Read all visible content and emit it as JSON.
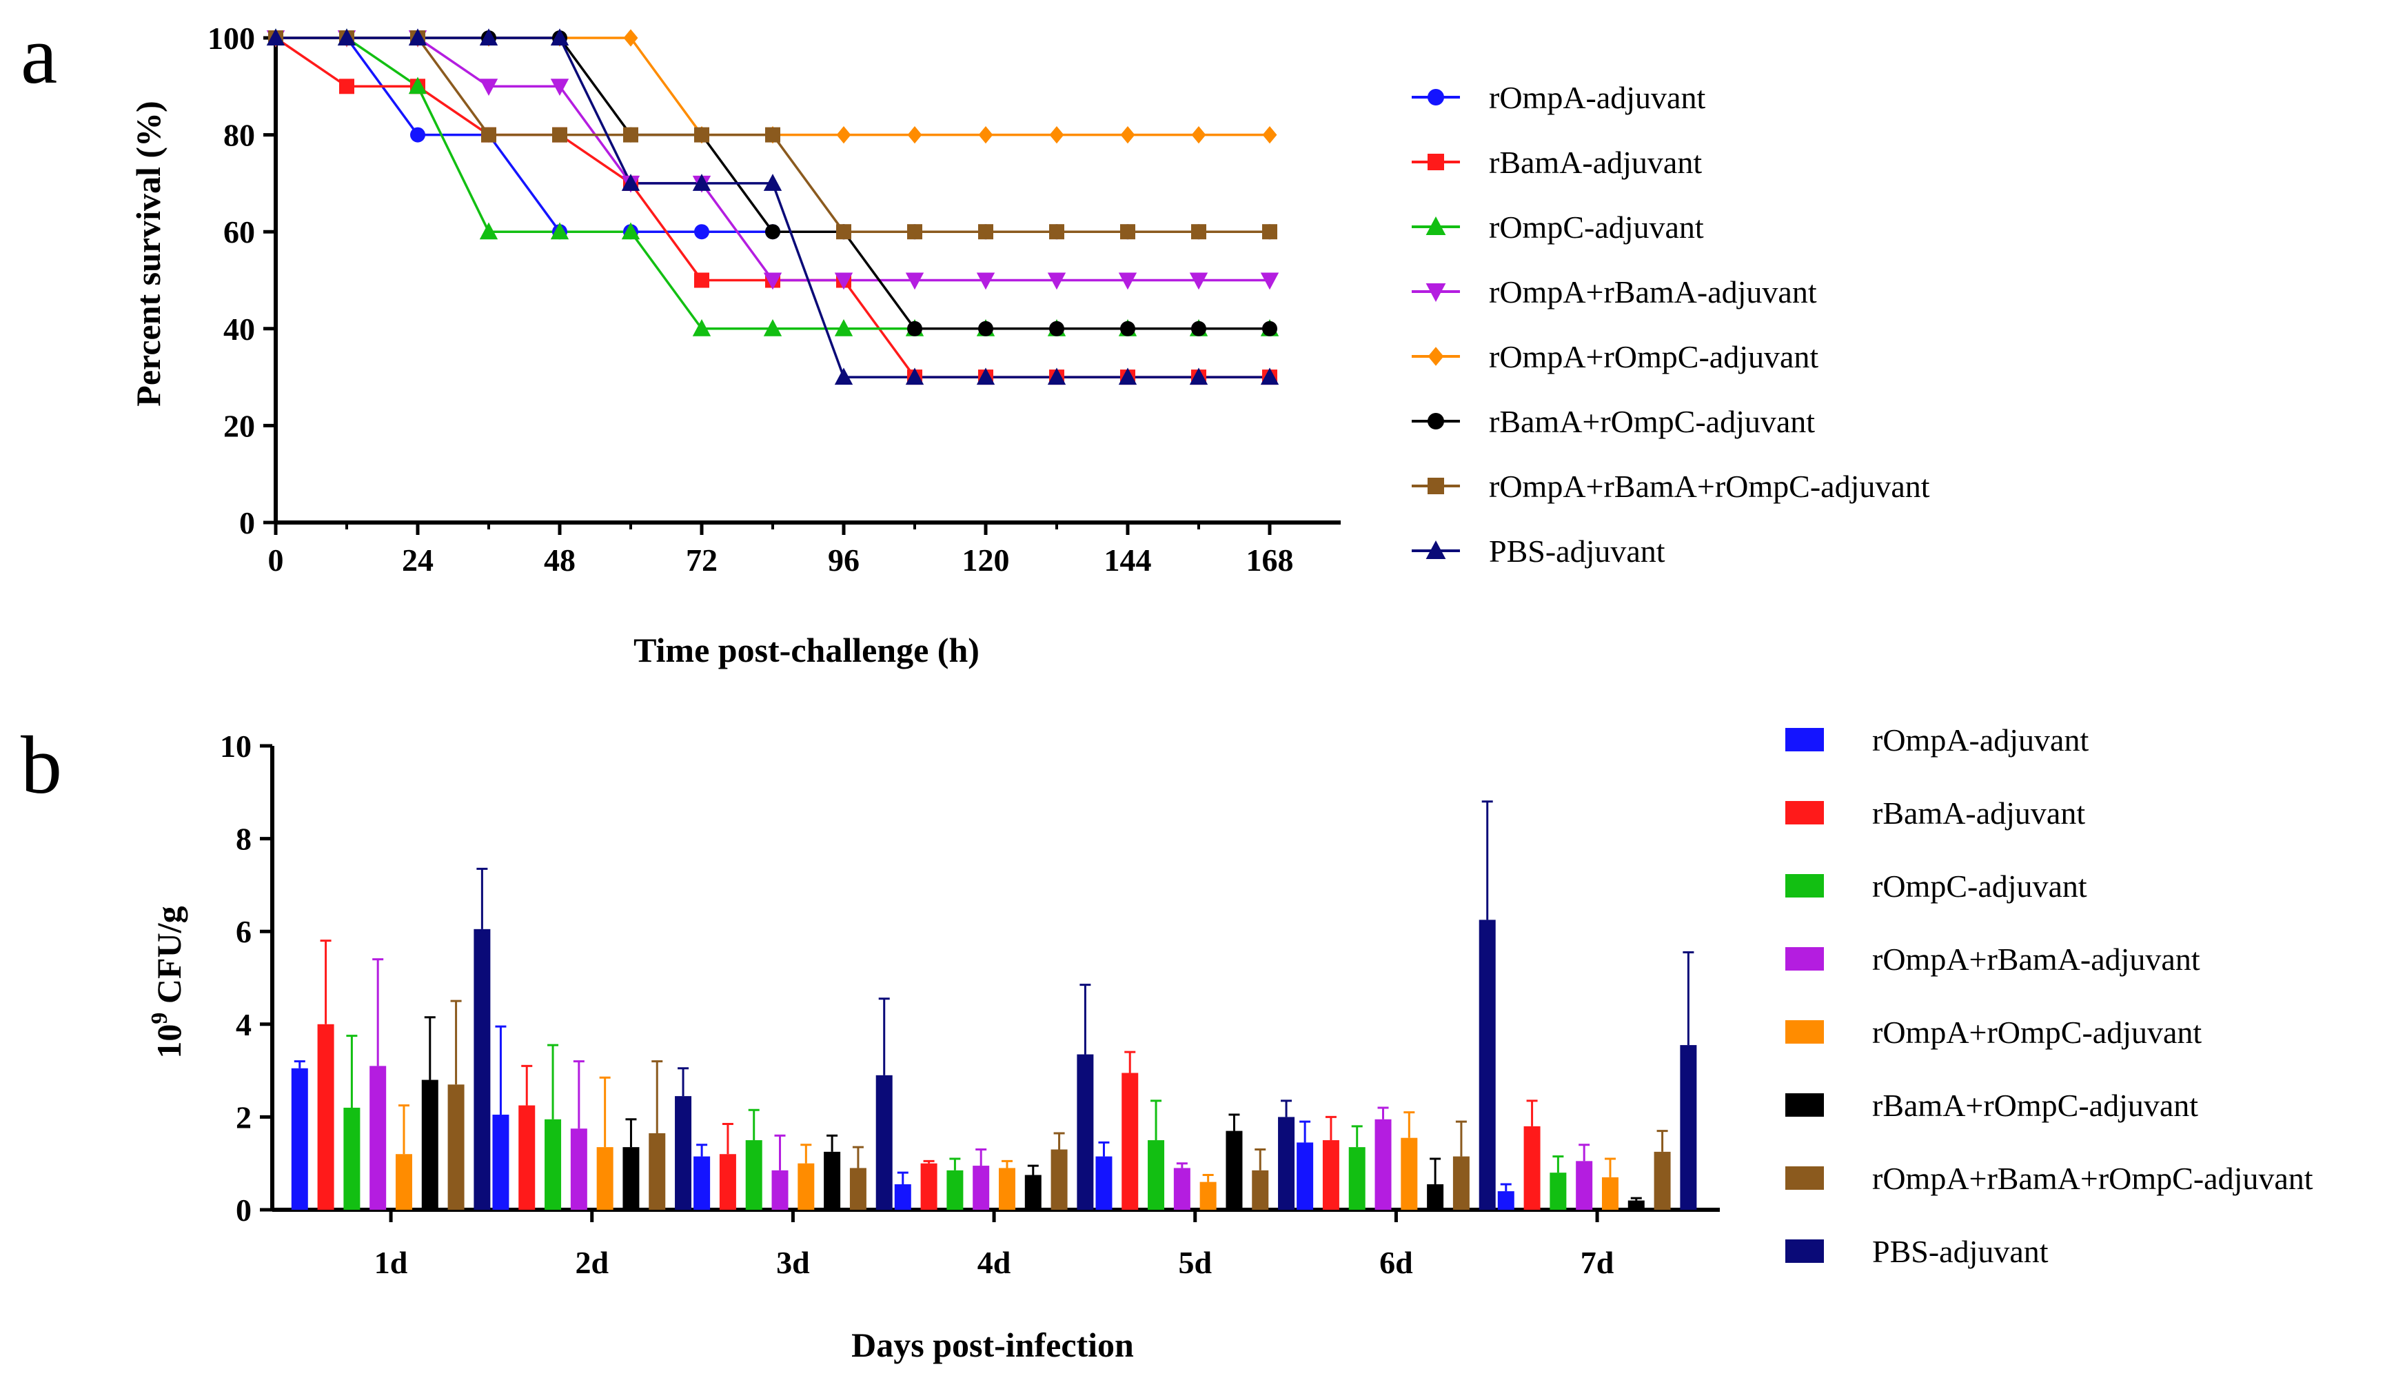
{
  "panels": [
    {
      "letter": "a",
      "chart_data": {
        "type": "line",
        "xlabel": "Time post-challenge (h)",
        "ylabel": "Percent survival (%)",
        "xlim": [
          0,
          168
        ],
        "ylim": [
          0,
          100
        ],
        "xticks": [
          0,
          24,
          48,
          72,
          96,
          120,
          144,
          168
        ],
        "yticks": [
          0,
          20,
          40,
          60,
          80,
          100
        ],
        "grid": false,
        "legend_position": "right",
        "x": [
          0,
          12,
          24,
          36,
          48,
          60,
          72,
          84,
          96,
          108,
          120,
          132,
          144,
          156,
          168
        ],
        "series": [
          {
            "name": "rOmpA-adjuvant",
            "color": "#1414ff",
            "marker": "circle",
            "values": [
              100,
              100,
              80,
              80,
              60,
              60,
              60,
              60,
              60,
              60,
              60,
              60,
              60,
              60,
              60
            ]
          },
          {
            "name": "rBamA-adjuvant",
            "color": "#ff1a1a",
            "marker": "square",
            "values": [
              100,
              90,
              90,
              80,
              80,
              70,
              50,
              50,
              50,
              30,
              30,
              30,
              30,
              30,
              30
            ]
          },
          {
            "name": "rOmpC-adjuvant",
            "color": "#12bf12",
            "marker": "triangle-up",
            "values": [
              100,
              100,
              90,
              60,
              60,
              60,
              40,
              40,
              40,
              40,
              40,
              40,
              40,
              40,
              40
            ]
          },
          {
            "name": "rOmpA+rBamA-adjuvant",
            "color": "#b41de0",
            "marker": "triangle-down",
            "values": [
              100,
              100,
              100,
              90,
              90,
              70,
              70,
              50,
              50,
              50,
              50,
              50,
              50,
              50,
              50
            ]
          },
          {
            "name": "rOmpA+rOmpC-adjuvant",
            "color": "#ff8c00",
            "marker": "diamond",
            "values": [
              100,
              100,
              100,
              100,
              100,
              100,
              80,
              80,
              80,
              80,
              80,
              80,
              80,
              80,
              80
            ]
          },
          {
            "name": "rBamA+rOmpC-adjuvant",
            "color": "#000000",
            "marker": "circle",
            "values": [
              100,
              100,
              100,
              100,
              100,
              80,
              80,
              60,
              60,
              40,
              40,
              40,
              40,
              40,
              40
            ]
          },
          {
            "name": "rOmpA+rBamA+rOmpC-adjuvant",
            "color": "#8b5a1e",
            "marker": "square",
            "values": [
              100,
              100,
              100,
              80,
              80,
              80,
              80,
              80,
              60,
              60,
              60,
              60,
              60,
              60,
              60
            ]
          },
          {
            "name": "PBS-adjuvant",
            "color": "#0a0a78",
            "marker": "triangle-up",
            "values": [
              100,
              100,
              100,
              100,
              100,
              70,
              70,
              70,
              30,
              30,
              30,
              30,
              30,
              30,
              30
            ]
          }
        ]
      }
    },
    {
      "letter": "b",
      "chart_data": {
        "type": "bar",
        "xlabel": "Days post-infection",
        "ylabel_base": "10",
        "ylabel_exp": "9",
        "ylabel_unit": " CFU/g",
        "ylim": [
          0,
          10
        ],
        "yticks": [
          0,
          2,
          4,
          6,
          8,
          10
        ],
        "grid": false,
        "legend_position": "right",
        "categories": [
          "1d",
          "2d",
          "3d",
          "4d",
          "5d",
          "6d",
          "7d"
        ],
        "error_bars": "upper standard deviation",
        "series": [
          {
            "name": "rOmpA-adjuvant",
            "color": "#1414ff",
            "values": [
              3.05,
              2.05,
              1.15,
              0.55,
              1.15,
              1.45,
              0.4
            ],
            "errors": [
              0.15,
              1.9,
              0.25,
              0.25,
              0.3,
              0.45,
              0.15
            ]
          },
          {
            "name": "rBamA-adjuvant",
            "color": "#ff1a1a",
            "values": [
              4.0,
              2.25,
              1.2,
              1.0,
              2.95,
              1.5,
              1.8
            ],
            "errors": [
              1.8,
              0.85,
              0.65,
              0.05,
              0.45,
              0.5,
              0.55
            ]
          },
          {
            "name": "rOmpC-adjuvant",
            "color": "#12bf12",
            "values": [
              2.2,
              1.95,
              1.5,
              0.85,
              1.5,
              1.35,
              0.8
            ],
            "errors": [
              1.55,
              1.6,
              0.65,
              0.25,
              0.85,
              0.45,
              0.35
            ]
          },
          {
            "name": "rOmpA+rBamA-adjuvant",
            "color": "#b41de0",
            "values": [
              3.1,
              1.75,
              0.85,
              0.95,
              0.9,
              1.95,
              1.05
            ],
            "errors": [
              2.3,
              1.45,
              0.75,
              0.35,
              0.1,
              0.25,
              0.35
            ]
          },
          {
            "name": "rOmpA+rOmpC-adjuvant",
            "color": "#ff8c00",
            "values": [
              1.2,
              1.35,
              1.0,
              0.9,
              0.6,
              1.55,
              0.7
            ],
            "errors": [
              1.05,
              1.5,
              0.4,
              0.15,
              0.15,
              0.55,
              0.4
            ]
          },
          {
            "name": "rBamA+rOmpC-adjuvant",
            "color": "#000000",
            "values": [
              2.8,
              1.35,
              1.25,
              0.75,
              1.7,
              0.55,
              0.2
            ],
            "errors": [
              1.35,
              0.6,
              0.35,
              0.2,
              0.35,
              0.55,
              0.05
            ]
          },
          {
            "name": "rOmpA+rBamA+rOmpC-adjuvant",
            "color": "#8b5a1e",
            "values": [
              2.7,
              1.65,
              0.9,
              1.3,
              0.85,
              1.15,
              1.25
            ],
            "errors": [
              1.8,
              1.55,
              0.45,
              0.35,
              0.45,
              0.75,
              0.45
            ]
          },
          {
            "name": "PBS-adjuvant",
            "color": "#0a0a78",
            "values": [
              6.05,
              2.45,
              2.9,
              3.35,
              2.0,
              6.25,
              3.55
            ],
            "errors": [
              1.3,
              0.6,
              1.65,
              1.5,
              0.35,
              2.55,
              2.0
            ]
          }
        ]
      }
    }
  ]
}
